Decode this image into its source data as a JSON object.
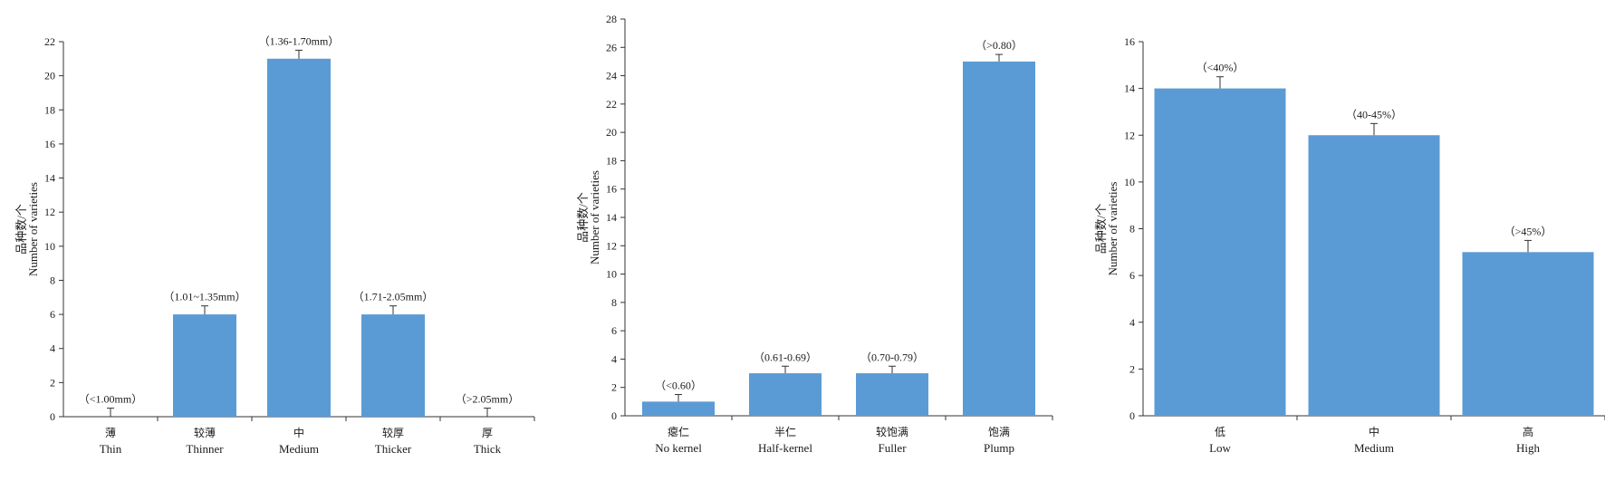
{
  "chart_data": [
    {
      "type": "bar",
      "ylabel_cn": "品种数/个",
      "ylabel_en": "Number of varieties",
      "ylim": [
        0,
        22
      ],
      "yticks": [
        0,
        2,
        4,
        6,
        8,
        10,
        12,
        14,
        16,
        18,
        20,
        22
      ],
      "categories_cn": [
        "薄",
        "较薄",
        "中",
        "较厚",
        "厚"
      ],
      "categories_en": [
        "Thin",
        "Thinner",
        "Medium",
        "Thicker",
        "Thick"
      ],
      "data_labels": [
        "（<1.00mm）",
        "（1.01~1.35mm）",
        "（1.36-1.70mm）",
        "（1.71-2.05mm）",
        "（>2.05mm）"
      ],
      "values": [
        0,
        6,
        21,
        6,
        0
      ],
      "errors": [
        0.5,
        0.5,
        0.5,
        0.5,
        0.5
      ],
      "color": "#5b9bd5"
    },
    {
      "type": "bar",
      "ylabel_cn": "品种数/个",
      "ylabel_en": "Number of varieties",
      "ylim": [
        0,
        28
      ],
      "yticks": [
        0,
        2,
        4,
        6,
        8,
        10,
        12,
        14,
        16,
        18,
        20,
        22,
        24,
        26,
        28
      ],
      "categories_cn": [
        "瘪仁",
        "半仁",
        "较饱满",
        "饱满"
      ],
      "categories_en": [
        "No kernel",
        "Half-kernel",
        "Fuller",
        "Plump"
      ],
      "data_labels": [
        "（<0.60）",
        "（0.61-0.69）",
        "（0.70-0.79）",
        "（>0.80）"
      ],
      "values": [
        1,
        3,
        3,
        25
      ],
      "errors": [
        0.5,
        0.5,
        0.5,
        0.5
      ],
      "color": "#5b9bd5"
    },
    {
      "type": "bar",
      "ylabel_cn": "品种数/个",
      "ylabel_en": "Number of varieties",
      "ylim": [
        0,
        16
      ],
      "yticks": [
        0,
        2,
        4,
        6,
        8,
        10,
        12,
        14,
        16
      ],
      "categories_cn": [
        "低",
        "中",
        "高"
      ],
      "categories_en": [
        "Low",
        "Medium",
        "High"
      ],
      "data_labels": [
        "（<40%）",
        "（40-45%）",
        "（>45%）"
      ],
      "values": [
        14,
        12,
        7
      ],
      "errors": [
        0.5,
        0.5,
        0.5
      ],
      "color": "#5b9bd5"
    }
  ]
}
